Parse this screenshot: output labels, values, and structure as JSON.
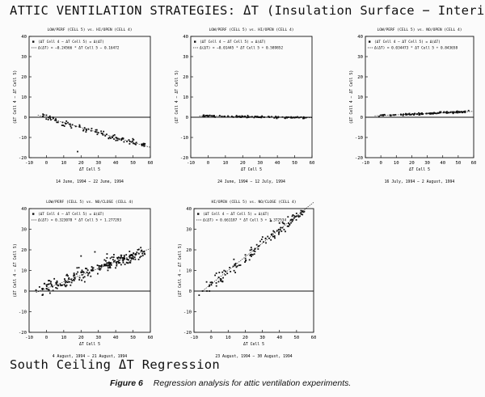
{
  "page": {
    "title": "ATTIC VENTILATION STRATEGIES:  ΔT (Insulation Surface − Interior)",
    "subtitle": "South Ceiling ΔT Regression",
    "figure_label": "Figure 6",
    "caption": "Regression analysis for attic ventilation experiments."
  },
  "chart_data": [
    {
      "type": "scatter",
      "title": "LOW/PERF (CELL 5) vs. HI/OPEN (CELL 4)",
      "xlabel": "ΔT Cell 5",
      "ylabel": "(ΔT Cell 4 − ΔT Cell 5)",
      "date_range": "14 June, 1994 − 22 June, 1994",
      "legend": [
        "(ΔT Cell 4 − ΔT Cell 5) = Δ(ΔT)",
        "Δ(ΔT) = −0.24566 * ΔT Cell 5 − 0.16472"
      ],
      "legend_position": "top-left",
      "xlim": [
        -10,
        60
      ],
      "ylim": [
        -20,
        40
      ],
      "xticks": [
        -10,
        0,
        10,
        20,
        30,
        40,
        50,
        60
      ],
      "yticks": [
        -20,
        -10,
        0,
        10,
        20,
        30,
        40
      ],
      "fit": {
        "slope": -0.24566,
        "intercept": -0.16472
      },
      "points_rule": {
        "x_range": [
          -3,
          57
        ],
        "count": 90,
        "spread": 1.6
      },
      "points": [
        [
          -2,
          1.5
        ],
        [
          0,
          1.0
        ],
        [
          2,
          0.5
        ],
        [
          4,
          -0.5
        ],
        [
          5,
          -1.5
        ],
        [
          6,
          -2.5
        ],
        [
          9,
          -4
        ],
        [
          11,
          -3
        ],
        [
          14,
          -4.5
        ],
        [
          18,
          -17
        ]
      ],
      "series": [
        {
          "name": "(ΔT Cell 4 − ΔT Cell 5) = Δ(ΔT)"
        }
      ]
    },
    {
      "type": "scatter",
      "title": "LOW/PERF (CELL 5) vs. HI/OPEN (CELL 4)",
      "xlabel": "ΔT Cell 5",
      "ylabel": "(ΔT Cell 4 − ΔT Cell 5)",
      "date_range": "24 June, 1994 − 12 July, 1994",
      "legend": [
        "(ΔT Cell 4 − ΔT Cell 5) = Δ(ΔT)",
        "Δ(ΔT) = −0.01445 * ΔT Cell 5 + 0.589852"
      ],
      "legend_position": "top-left",
      "xlim": [
        -10,
        60
      ],
      "ylim": [
        -20,
        40
      ],
      "xticks": [
        -10,
        0,
        10,
        20,
        30,
        40,
        50,
        60
      ],
      "yticks": [
        -20,
        -10,
        0,
        10,
        20,
        30,
        40
      ],
      "fit": {
        "slope": -0.01445,
        "intercept": 0.589852
      },
      "points_rule": {
        "x_range": [
          -3,
          57
        ],
        "count": 110,
        "spread": 0.45
      },
      "points": [],
      "series": [
        {
          "name": "(ΔT Cell 4 − ΔT Cell 5) = Δ(ΔT)"
        }
      ]
    },
    {
      "type": "scatter",
      "title": "LOW/PERF (CELL 5) vs. NO/OPEN (CELL 4)",
      "xlabel": "ΔT Cell 5",
      "ylabel": "(ΔT Cell 4 − ΔT Cell 5)",
      "date_range": "16 July, 1994 − 2 August, 1994",
      "legend": [
        "(ΔT Cell 4 − ΔT Cell 5) = Δ(ΔT)",
        "Δ(ΔT) = 0.034473 * ΔT Cell 5 + 0.843658"
      ],
      "legend_position": "top-left",
      "xlim": [
        -10,
        60
      ],
      "ylim": [
        -20,
        40
      ],
      "xticks": [
        -10,
        0,
        10,
        20,
        30,
        40,
        50,
        60
      ],
      "yticks": [
        -20,
        -10,
        0,
        10,
        20,
        30,
        40
      ],
      "fit": {
        "slope": 0.034473,
        "intercept": 0.843658
      },
      "points_rule": {
        "x_range": [
          -2,
          57
        ],
        "count": 110,
        "spread": 0.45
      },
      "points": [],
      "series": [
        {
          "name": "(ΔT Cell 4 − ΔT Cell 5) = Δ(ΔT)"
        }
      ]
    },
    {
      "type": "scatter",
      "title": "LOW/PERF (CELL 5) vs. NO/CLOSE (CELL 4)",
      "xlabel": "ΔT Cell 5",
      "ylabel": "(ΔT Cell 4 − ΔT Cell 5)",
      "date_range": "4 August, 1994 − 21 August, 1994",
      "legend": [
        "(ΔT Cell 4 − ΔT Cell 5) = Δ(ΔT)",
        "Δ(ΔT) = 0.323078 * ΔT Cell 5 + 1.277293"
      ],
      "legend_position": "top-left",
      "xlim": [
        -10,
        60
      ],
      "ylim": [
        -20,
        40
      ],
      "xticks": [
        -10,
        0,
        10,
        20,
        30,
        40,
        50,
        60
      ],
      "yticks": [
        -20,
        -10,
        0,
        10,
        20,
        30,
        40
      ],
      "fit": {
        "slope": 0.323078,
        "intercept": 1.277293
      },
      "points_rule": {
        "x_range": [
          -4,
          57
        ],
        "count": 230,
        "spread": 3.2
      },
      "points": [
        [
          -6,
          0.5
        ],
        [
          -4,
          2
        ],
        [
          0,
          3
        ],
        [
          20,
          17
        ],
        [
          28,
          19
        ],
        [
          35,
          18
        ]
      ],
      "series": [
        {
          "name": "(ΔT Cell 4 − ΔT Cell 5) = Δ(ΔT)"
        }
      ]
    },
    {
      "type": "scatter",
      "title": "HI/OPEN (CELL 5) vs. NO/CLOSE (CELL 4)",
      "xlabel": "ΔT Cell 5",
      "ylabel": "(ΔT Cell 4 − ΔT Cell 5)",
      "date_range": "23 August, 1994 − 30 August, 1994",
      "legend": [
        "(ΔT Cell 4 − ΔT Cell 5) = Δ(ΔT)",
        "Δ(ΔT) = 0.661187 * ΔT Cell 5 + 3.372534"
      ],
      "legend_position": "top-left",
      "xlim": [
        -10,
        60
      ],
      "ylim": [
        -20,
        40
      ],
      "xticks": [
        -10,
        0,
        10,
        20,
        30,
        40,
        50,
        60
      ],
      "yticks": [
        -20,
        -10,
        0,
        10,
        20,
        30,
        40
      ],
      "fit": {
        "slope": 0.661187,
        "intercept": 3.372534
      },
      "points_rule": {
        "x_range": [
          -3,
          55
        ],
        "count": 130,
        "spread": 3.0
      },
      "points": [
        [
          -7,
          -2
        ],
        [
          -5,
          0
        ],
        [
          35,
          34
        ],
        [
          40,
          33
        ],
        [
          45,
          36
        ]
      ],
      "series": [
        {
          "name": "(ΔT Cell 4 − ΔT Cell 5) = Δ(ΔT)"
        }
      ]
    }
  ]
}
